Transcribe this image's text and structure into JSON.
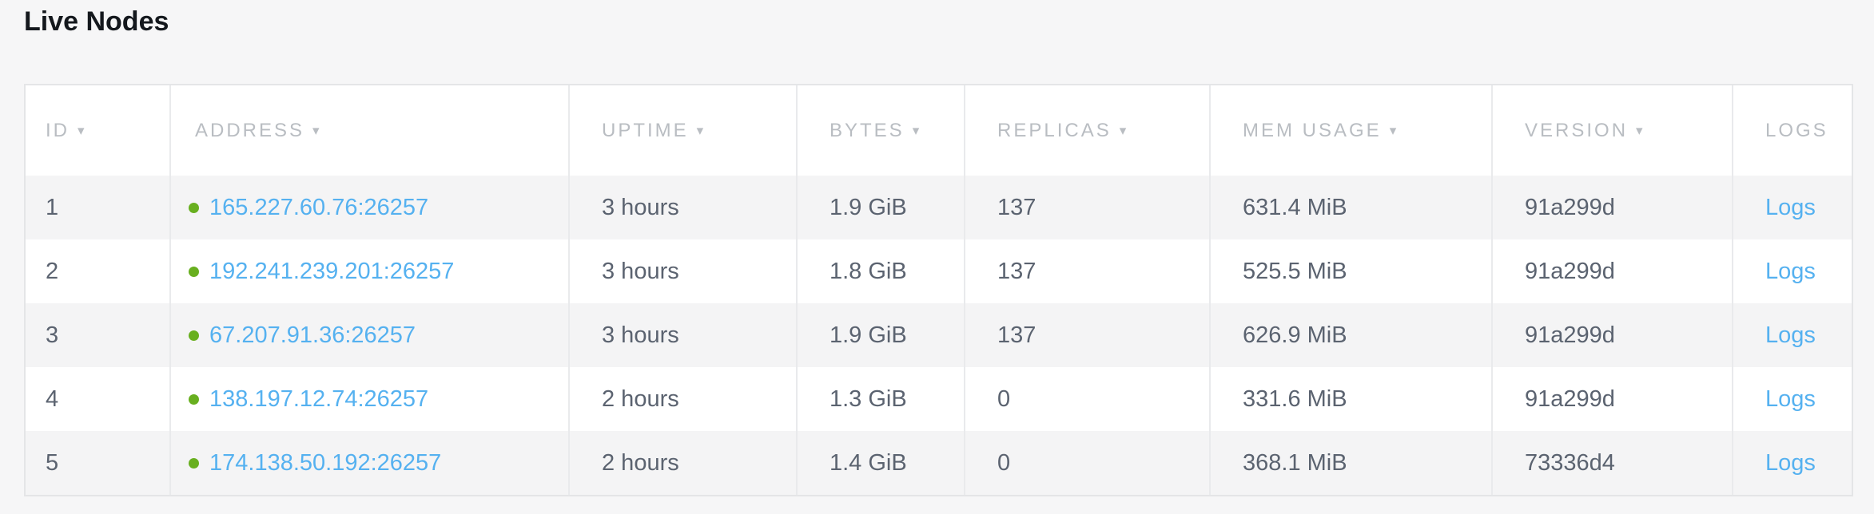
{
  "page": {
    "title": "Live Nodes"
  },
  "table": {
    "sort_icon": "▾",
    "columns": [
      {
        "key": "id",
        "label": "ID",
        "sortable": true
      },
      {
        "key": "address",
        "label": "ADDRESS",
        "sortable": true
      },
      {
        "key": "uptime",
        "label": "UPTIME",
        "sortable": true
      },
      {
        "key": "bytes",
        "label": "BYTES",
        "sortable": true
      },
      {
        "key": "replicas",
        "label": "REPLICAS",
        "sortable": true
      },
      {
        "key": "mem_usage",
        "label": "MEM USAGE",
        "sortable": true
      },
      {
        "key": "version",
        "label": "VERSION",
        "sortable": true
      },
      {
        "key": "logs",
        "label": "LOGS",
        "sortable": false
      }
    ],
    "rows": [
      {
        "id": "1",
        "address": "165.227.60.76:26257",
        "status": "healthy",
        "uptime": "3 hours",
        "bytes": "1.9 GiB",
        "replicas": "137",
        "mem_usage": "631.4 MiB",
        "version": "91a299d",
        "logs_label": "Logs"
      },
      {
        "id": "2",
        "address": "192.241.239.201:26257",
        "status": "healthy",
        "uptime": "3 hours",
        "bytes": "1.8 GiB",
        "replicas": "137",
        "mem_usage": "525.5 MiB",
        "version": "91a299d",
        "logs_label": "Logs"
      },
      {
        "id": "3",
        "address": "67.207.91.36:26257",
        "status": "healthy",
        "uptime": "3 hours",
        "bytes": "1.9 GiB",
        "replicas": "137",
        "mem_usage": "626.9 MiB",
        "version": "91a299d",
        "logs_label": "Logs"
      },
      {
        "id": "4",
        "address": "138.197.12.74:26257",
        "status": "healthy",
        "uptime": "2 hours",
        "bytes": "1.3 GiB",
        "replicas": "0",
        "mem_usage": "331.6 MiB",
        "version": "91a299d",
        "logs_label": "Logs"
      },
      {
        "id": "5",
        "address": "174.138.50.192:26257",
        "status": "healthy",
        "uptime": "2 hours",
        "bytes": "1.4 GiB",
        "replicas": "0",
        "mem_usage": "368.1 MiB",
        "version": "73336d4",
        "logs_label": "Logs"
      }
    ]
  },
  "colors": {
    "page_background": "#f6f6f7",
    "row_stripe": "#f4f4f5",
    "border": "#e4e5e7",
    "header_text": "#b9bdc2",
    "cell_text": "#5b6370",
    "link_blue": "#55b1f0",
    "status_green": "#68af1f",
    "title_text": "#14181d"
  }
}
